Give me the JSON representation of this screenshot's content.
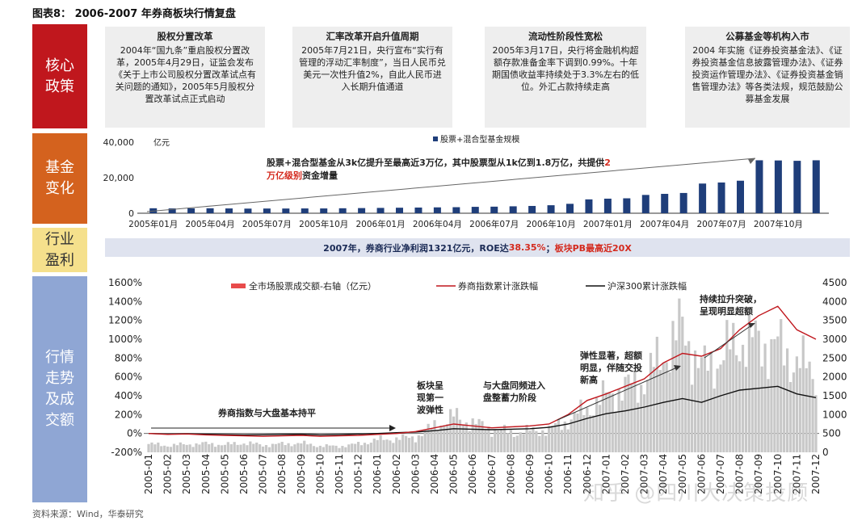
{
  "title": "图表8： 2006-2007 年券商板块行情复盘",
  "source": "资料来源：Wind，华泰研究",
  "watermark": "知乎 @四川大决策投顾",
  "colors": {
    "policy": "#c0171d",
    "fund": "#d4621e",
    "profit": "#f5e08c",
    "market": "#8fa6d4",
    "bar": "#1f3e7a",
    "price": "#e84b4b",
    "broker": "#c0171d",
    "hs300": "#111111",
    "volume": "#c8c8c8"
  },
  "side_labels": {
    "policy": "核心\n政策",
    "fund": "基金\n变化",
    "profit": "行业\n盈利",
    "market": "行情\n走势\n及成\n交额"
  },
  "policies": [
    {
      "title": "股权分置改革",
      "text": "2004年“国九条”重启股权分置改革，2005年4月29日，证监会发布《关于上市公司股权分置改革试点有关问题的通知》，2005年5月股权分置改革试点正式启动"
    },
    {
      "title": "汇率改革开启升值周期",
      "text": "2005年7月21日，央行宣布“实行有管理的浮动汇率制度”，当日人民币兑美元一次性升值2%，自此人民币进入长期升值通道"
    },
    {
      "title": "流动性阶段性宽松",
      "text": "2005年3月17日，央行将金融机构超额存款准备金率下调到0.99%。十年期国债收益率持续处于3.3%左右的低位。外汇占款持续走高"
    },
    {
      "title": "公募基金等机构入市",
      "text": "2004 年实施《证券投资基金法》、《证券投资基金信息披露管理办法》、《证券投资运作管理办法》、《证券投资基金销售管理办法》等各类法规，规范鼓励公募基金发展"
    }
  ],
  "profit_band": {
    "prefix": "2007年，券商行业净利润1321亿元，ROE达",
    "roe": "38.35%",
    "sep": "；",
    "pb": "板块PB最高近20X"
  },
  "chart_data": [
    {
      "type": "bar",
      "series": [
        {
          "name": "股票+混合型基金规模",
          "values": [
            2800,
            2700,
            2750,
            2800,
            2700,
            2600,
            2650,
            2650,
            2700,
            2700,
            2800,
            2900,
            3000,
            3100,
            3200,
            3300,
            3400,
            3600,
            3700,
            3900,
            4100,
            4500,
            5300,
            7800,
            8200,
            8400,
            10300,
            10900,
            11400,
            16700,
            17300,
            18300,
            29800,
            29700,
            29500,
            29800
          ]
        }
      ],
      "categories": [
        "2005年01月",
        "2005年02月",
        "2005年03月",
        "2005年04月",
        "2005年05月",
        "2005年06月",
        "2005年07月",
        "2005年08月",
        "2005年09月",
        "2005年10月",
        "2005年11月",
        "2005年12月",
        "2006年01月",
        "2006年02月",
        "2006年03月",
        "2006年04月",
        "2006年05月",
        "2006年06月",
        "2006年07月",
        "2006年08月",
        "2006年09月",
        "2006年10月",
        "2006年11月",
        "2006年12月",
        "2007年01月",
        "2007年02月",
        "2007年03月",
        "2007年04月",
        "2007年05月",
        "2007年06月",
        "2007年07月",
        "2007年08月",
        "2007年09月",
        "2007年10月",
        "2007年11月",
        "2007年12月"
      ],
      "tick_labels": [
        "2005年01月",
        "2005年04月",
        "2005年07月",
        "2005年10月",
        "2006年01月",
        "2006年04月",
        "2006年07月",
        "2006年10月",
        "2007年01月",
        "2007年04月",
        "2007年07月",
        "2007年10月"
      ],
      "yunit": "亿元",
      "yticks": [
        "0",
        "20,000",
        "40,000"
      ],
      "ylim": [
        0,
        40000
      ],
      "annotation": {
        "text_a": "股票+混合型基金从3k亿提升至最高近3万亿，其中股票型从1k亿到1.8万亿，共提供",
        "text_red": "2万亿级别",
        "text_b": "资金增量"
      }
    },
    {
      "type": "line",
      "x_labels": [
        "2005-01",
        "2005-02",
        "2005-03",
        "2005-04",
        "2005-05",
        "2005-06",
        "2005-07",
        "2005-08",
        "2005-09",
        "2005-10",
        "2005-11",
        "2005-12",
        "2006-01",
        "2006-02",
        "2006-03",
        "2006-04",
        "2006-05",
        "2006-06",
        "2006-07",
        "2006-08",
        "2006-09",
        "2006-10",
        "2006-11",
        "2006-12",
        "2007-01",
        "2007-02",
        "2007-03",
        "2007-04",
        "2007-05",
        "2007-06",
        "2007-07",
        "2007-08",
        "2007-09",
        "2007-10",
        "2007-11",
        "2007-12"
      ],
      "y_left_ticks": [
        "1600%",
        "1400%",
        "1200%",
        "1000%",
        "800%",
        "600%",
        "400%",
        "200%",
        "0%",
        "-200%"
      ],
      "y_left_lim": [
        -200,
        1600
      ],
      "y_right_ticks": [
        "4500",
        "4000",
        "3500",
        "3000",
        "2500",
        "2000",
        "1500",
        "1000",
        "500",
        "0"
      ],
      "y_right_lim": [
        0,
        4500
      ],
      "legend": [
        "全市场股票成交额-右轴（亿元）",
        "券商指数累计涨跌幅",
        "沪深300累计涨跌幅"
      ],
      "series": [
        {
          "name": "全市场股票成交额-右轴（亿元）",
          "axis": "right",
          "values": [
            220,
            180,
            210,
            230,
            200,
            250,
            190,
            220,
            240,
            170,
            160,
            220,
            330,
            360,
            400,
            700,
            950,
            780,
            620,
            520,
            560,
            600,
            850,
            1150,
            1500,
            1700,
            1900,
            2600,
            3300,
            2200,
            2500,
            3000,
            2900,
            2800,
            2400,
            2100
          ]
        },
        {
          "name": "券商指数累计涨跌幅",
          "axis": "left",
          "values": [
            0,
            -10,
            -5,
            -15,
            -20,
            -25,
            -30,
            -25,
            -20,
            -30,
            -25,
            -20,
            -10,
            0,
            20,
            60,
            100,
            80,
            60,
            70,
            80,
            100,
            200,
            350,
            420,
            500,
            580,
            750,
            850,
            820,
            900,
            1100,
            1250,
            1350,
            1100,
            1000
          ]
        },
        {
          "name": "沪深300累计涨跌幅",
          "axis": "left",
          "values": [
            0,
            -5,
            -2,
            -8,
            -12,
            -15,
            -14,
            -10,
            -8,
            -15,
            -12,
            -5,
            0,
            8,
            15,
            30,
            50,
            45,
            40,
            45,
            50,
            65,
            100,
            160,
            210,
            240,
            280,
            330,
            370,
            330,
            400,
            460,
            480,
            500,
            420,
            380
          ]
        }
      ],
      "annotations": [
        {
          "id": "flat",
          "text": "券商指数与大盘基本持平"
        },
        {
          "id": "wave1",
          "text": "板块呈\n现第一\n波弹性"
        },
        {
          "id": "consol",
          "text": "与大盘同频进入\n盘整蓄力阶段"
        },
        {
          "id": "elastic",
          "text": "弹性显著，超额\n明显，伴随交投\n新高"
        },
        {
          "id": "break",
          "text": "持续拉升突破，\n呈现明显超额"
        }
      ]
    }
  ]
}
